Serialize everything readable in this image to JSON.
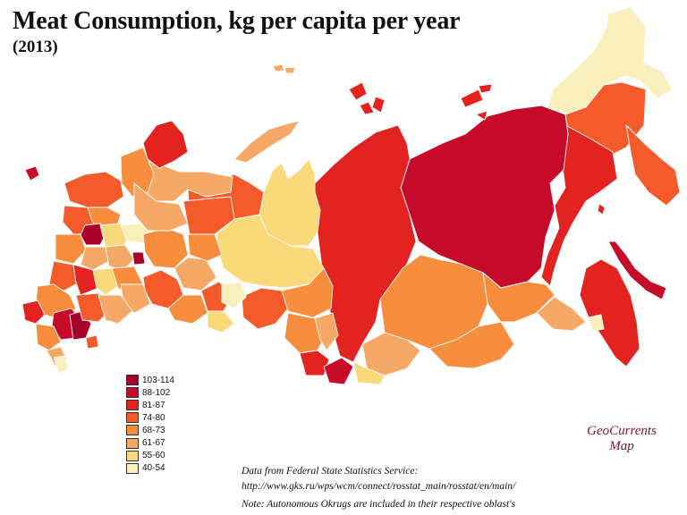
{
  "title": "Meat Consumption, kg per capita per year",
  "subtitle": "(2013)",
  "legend": [
    {
      "label": "103-114",
      "color": "#a8002a"
    },
    {
      "label": "88-102",
      "color": "#c50a2a"
    },
    {
      "label": "81-87",
      "color": "#e2231f"
    },
    {
      "label": "74-80",
      "color": "#f45a2a"
    },
    {
      "label": "68-73",
      "color": "#f78d3d"
    },
    {
      "label": "61-67",
      "color": "#f6a966"
    },
    {
      "label": "55-60",
      "color": "#f9d97a"
    },
    {
      "label": "40-54",
      "color": "#f9efbd"
    }
  ],
  "credit": {
    "line1": "GeoCurrents",
    "line2": "Map"
  },
  "source": {
    "line1": "Data from Federal State Statistics Service:",
    "line2": "http://www.gks.ru/wps/wcm/connect/rosstat_main/rosstat/en/main/",
    "line3": "Note: Autonomous Okrugs are included in their respective oblast's"
  }
}
